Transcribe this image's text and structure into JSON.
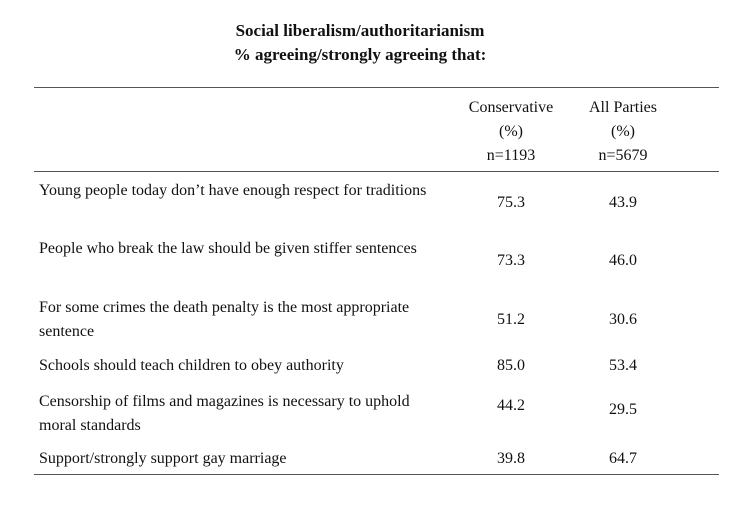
{
  "title": {
    "line1": "Social liberalism/authoritarianism",
    "line2": "% agreeing/strongly agreeing that:"
  },
  "columns": [
    {
      "name": "Conservative",
      "unit": "(%)",
      "n": "n=1193"
    },
    {
      "name": "All Parties",
      "unit": "(%)",
      "n": "n=5679"
    }
  ],
  "rows": [
    {
      "label": "Young people today don’t have enough respect for traditions",
      "conservative": "75.3",
      "all_parties": "43.9"
    },
    {
      "label": "People who break the law should be given stiffer sentences",
      "conservative": "73.3",
      "all_parties": "46.0"
    },
    {
      "label": "For some crimes the death penalty is the most appropriate sentence",
      "conservative": "51.2",
      "all_parties": "30.6"
    },
    {
      "label": "Schools should teach children to obey authority",
      "conservative": "85.0",
      "all_parties": "53.4"
    },
    {
      "label": "Censorship of films and magazines is necessary to uphold moral standards",
      "conservative": "44.2",
      "all_parties": "29.5"
    },
    {
      "label": "Support/strongly support gay marriage",
      "conservative": "39.8",
      "all_parties": "64.7"
    }
  ]
}
